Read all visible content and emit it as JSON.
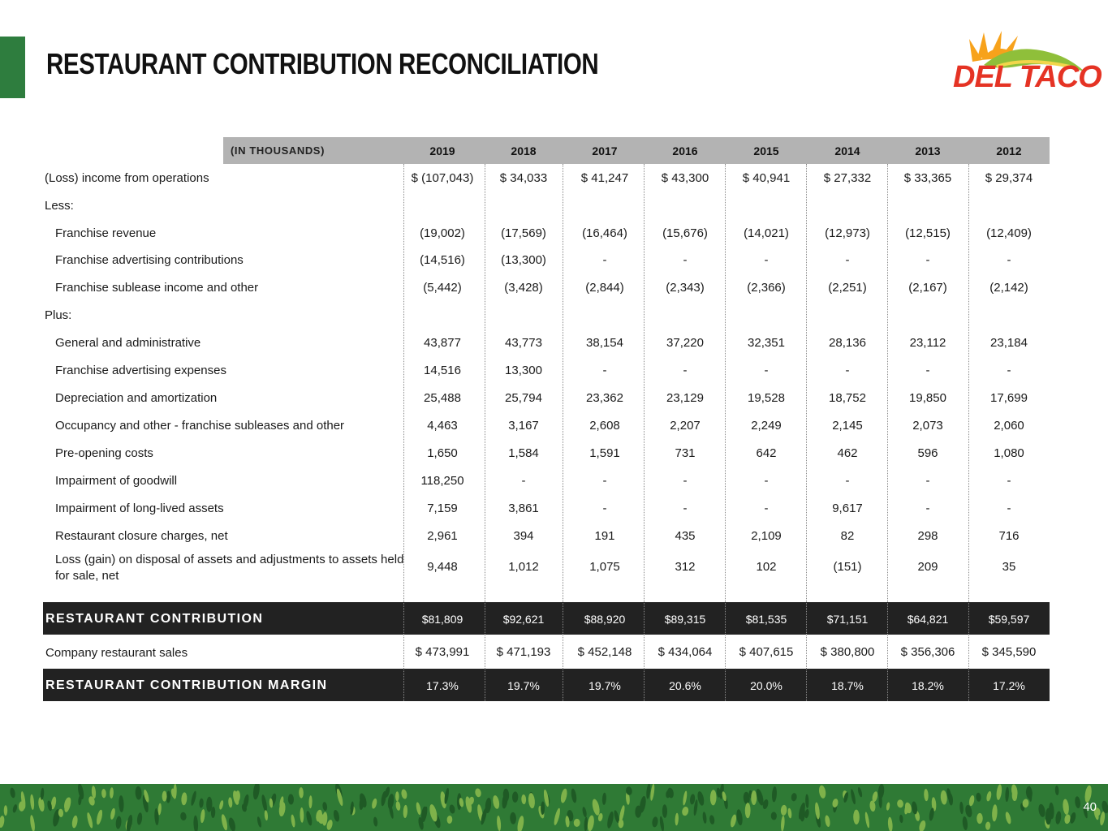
{
  "title": "RESTAURANT CONTRIBUTION RECONCILIATION",
  "logo": {
    "text": "DEL TACO",
    "colors": {
      "sun": "#f7a21b",
      "hill": "#8fbf3a",
      "text": "#e53324"
    }
  },
  "table": {
    "unit_label": "(IN THOUSANDS)",
    "years": [
      "2019",
      "2018",
      "2017",
      "2016",
      "2015",
      "2014",
      "2013",
      "2012"
    ],
    "rows": [
      {
        "label": "(Loss) income from operations",
        "indent": false,
        "values": [
          "$ (107,043)",
          "$ 34,033",
          "$ 41,247",
          "$ 43,300",
          "$ 40,941",
          "$ 27,332",
          "$ 33,365",
          "$ 29,374"
        ]
      },
      {
        "label": "Less:",
        "indent": false,
        "values": []
      },
      {
        "label": "Franchise revenue",
        "indent": true,
        "values": [
          "(19,002)",
          "(17,569)",
          "(16,464)",
          "(15,676)",
          "(14,021)",
          "(12,973)",
          "(12,515)",
          "(12,409)"
        ]
      },
      {
        "label": "Franchise advertising contributions",
        "indent": true,
        "values": [
          "(14,516)",
          "(13,300)",
          "-",
          "-",
          "-",
          "-",
          "-",
          "-"
        ]
      },
      {
        "label": "Franchise sublease income and other",
        "indent": true,
        "values": [
          "(5,442)",
          "(3,428)",
          "(2,844)",
          "(2,343)",
          "(2,366)",
          "(2,251)",
          "(2,167)",
          "(2,142)"
        ]
      },
      {
        "label": "Plus:",
        "indent": false,
        "values": []
      },
      {
        "label": "General and administrative",
        "indent": true,
        "values": [
          "43,877",
          "43,773",
          "38,154",
          "37,220",
          "32,351",
          "28,136",
          "23,112",
          "23,184"
        ]
      },
      {
        "label": "Franchise advertising expenses",
        "indent": true,
        "values": [
          "14,516",
          "13,300",
          "-",
          "-",
          "-",
          "-",
          "-",
          "-"
        ]
      },
      {
        "label": "Depreciation and amortization",
        "indent": true,
        "values": [
          "25,488",
          "25,794",
          "23,362",
          "23,129",
          "19,528",
          "18,752",
          "19,850",
          "17,699"
        ]
      },
      {
        "label": "Occupancy and other - franchise subleases and other",
        "indent": true,
        "values": [
          "4,463",
          "3,167",
          "2,608",
          "2,207",
          "2,249",
          "2,145",
          "2,073",
          "2,060"
        ]
      },
      {
        "label": "Pre-opening costs",
        "indent": true,
        "values": [
          "1,650",
          "1,584",
          "1,591",
          "731",
          "642",
          "462",
          "596",
          "1,080"
        ]
      },
      {
        "label": "Impairment of goodwill",
        "indent": true,
        "values": [
          "118,250",
          "-",
          "-",
          "-",
          "-",
          "-",
          "-",
          "-"
        ]
      },
      {
        "label": "Impairment of long-lived assets",
        "indent": true,
        "values": [
          "7,159",
          "3,861",
          "-",
          "-",
          "-",
          "9,617",
          "-",
          "-"
        ]
      },
      {
        "label": "Restaurant closure charges, net",
        "indent": true,
        "values": [
          "2,961",
          "394",
          "191",
          "435",
          "2,109",
          "82",
          "298",
          "716"
        ]
      },
      {
        "label": "Loss (gain) on disposal of assets and adjustments to assets held for sale, net",
        "indent": true,
        "values": [
          "9,448",
          "1,012",
          "1,075",
          "312",
          "102",
          "(151)",
          "209",
          "35"
        ]
      }
    ],
    "restaurant_contribution": {
      "label": "RESTAURANT CONTRIBUTION",
      "values": [
        "$81,809",
        "$92,621",
        "$88,920",
        "$89,315",
        "$81,535",
        "$71,151",
        "$64,821",
        "$59,597"
      ]
    },
    "company_sales": {
      "label": "Company restaurant sales",
      "values": [
        "$ 473,991",
        "$ 471,193",
        "$ 452,148",
        "$ 434,064",
        "$ 407,615",
        "$ 380,800",
        "$ 356,306",
        "$ 345,590"
      ]
    },
    "margin": {
      "label": "RESTAURANT CONTRIBUTION MARGIN",
      "values": [
        "17.3%",
        "19.7%",
        "19.7%",
        "20.6%",
        "20.0%",
        "18.7%",
        "18.2%",
        "17.2%"
      ]
    }
  },
  "page_number": "40",
  "colors": {
    "accent_green": "#2e7d3e",
    "header_gray": "#b3b3b3",
    "dark_band": "#222222",
    "footer_green": "#2f7a35"
  }
}
